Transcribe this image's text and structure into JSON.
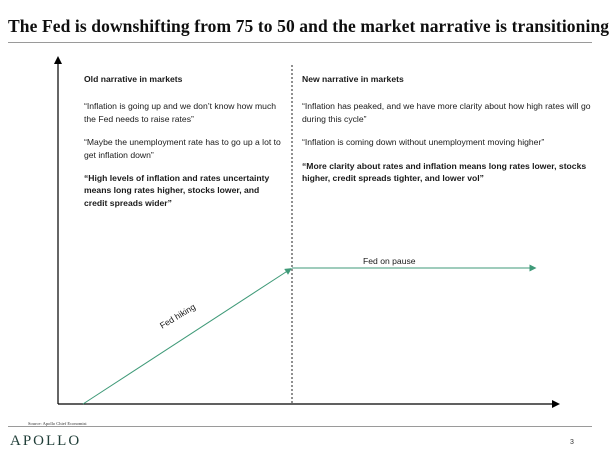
{
  "title": "The Fed is downshifting from 75 to 50 and the market narrative is transitioning",
  "old_narrative": {
    "heading": "Old narrative in markets",
    "quote1": "“Inflation is going up and we don’t know how much the Fed needs to raise rates”",
    "quote2": "“Maybe the unemployment rate has to go up a lot to get inflation down”",
    "conclusion": "“High levels of inflation and rates uncertainty means long rates higher, stocks lower, and credit spreads wider”"
  },
  "new_narrative": {
    "heading": "New narrative in markets",
    "quote1": "“Inflation has peaked, and we have more clarity about how high rates will go during this cycle”",
    "quote2": "“Inflation is coming down without unemployment moving higher”",
    "conclusion": "“More clarity about rates and inflation means long rates lower, stocks higher, credit spreads tighter, and lower vol”"
  },
  "phases": {
    "hiking": "Fed hiking",
    "pause": "Fed on pause"
  },
  "colors": {
    "arrow": "#3f9a78",
    "axis": "#000000"
  },
  "footer": {
    "source": "Source: Apollo Chief Economist",
    "logo": "APOLLO",
    "page": "3"
  }
}
